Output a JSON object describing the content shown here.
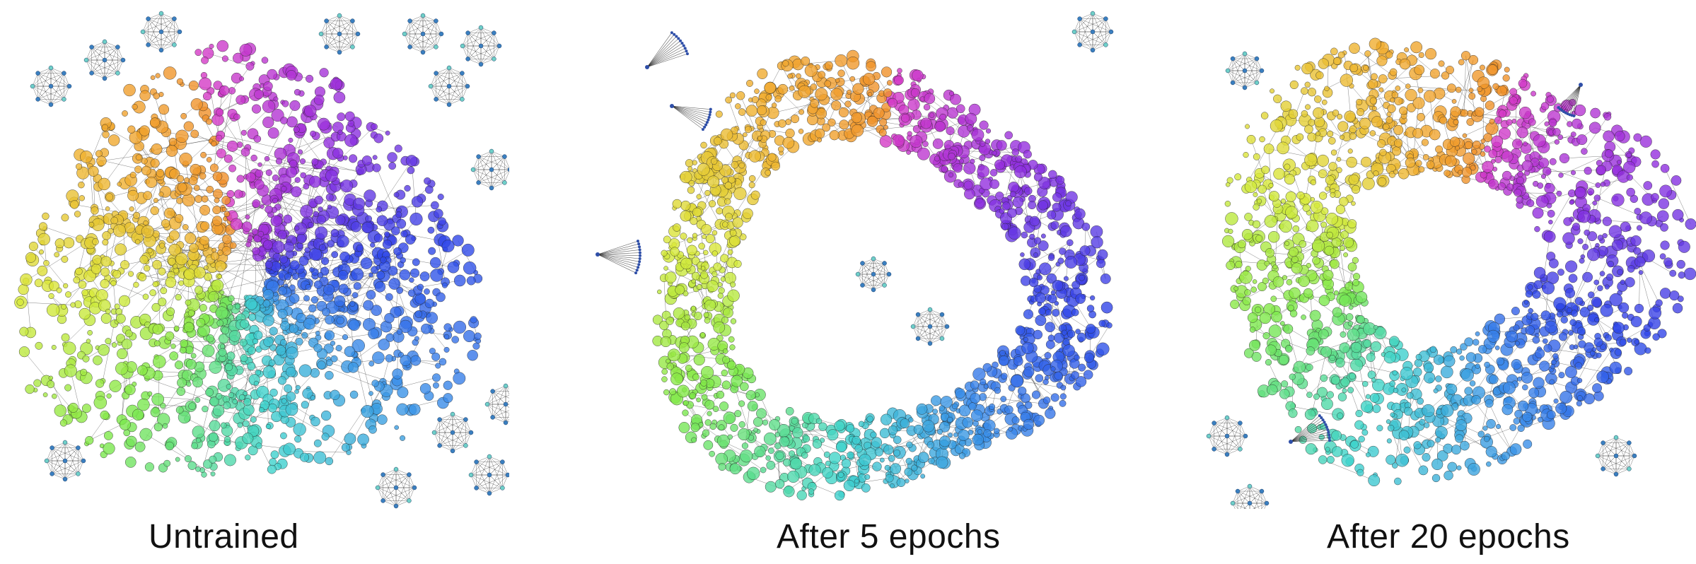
{
  "panels": [
    {
      "caption": "Untrained"
    },
    {
      "caption": "After 5 epochs"
    },
    {
      "caption": "After 20 epochs"
    }
  ],
  "colors": {
    "ring_gradient": [
      "#d63bc6",
      "#8f2fe0",
      "#2f46e8",
      "#3a8fe8",
      "#3fd3cc",
      "#7de84a",
      "#d9e83a",
      "#f0b030",
      "#f08a2a"
    ],
    "edge": "#1a1a1a",
    "small_graph_node": "#3a7fc0"
  }
}
